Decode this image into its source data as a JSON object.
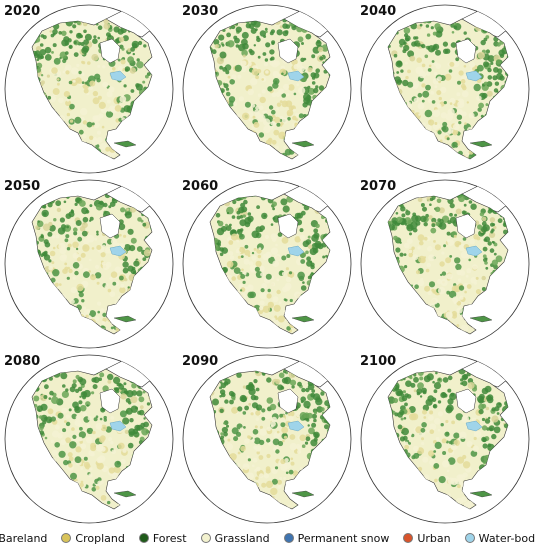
{
  "panels": [
    {
      "year": "2020"
    },
    {
      "year": "2030"
    },
    {
      "year": "2040"
    },
    {
      "year": "2050"
    },
    {
      "year": "2060"
    },
    {
      "year": "2070"
    },
    {
      "year": "2080"
    },
    {
      "year": "2090"
    },
    {
      "year": "2100"
    }
  ],
  "legend": [
    {
      "label": "Bareland",
      "color": "#c8c8c8"
    },
    {
      "label": "Cropland",
      "color": "#d8c35a"
    },
    {
      "label": "Forest",
      "color": "#1f5a1a"
    },
    {
      "label": "Grassland",
      "color": "#f3f2cf"
    },
    {
      "label": "Permanent snow",
      "color": "#3f74b0"
    },
    {
      "label": "Urban",
      "color": "#d9542b"
    },
    {
      "label": "Water-bodies",
      "color": "#9fd4ea"
    }
  ]
}
